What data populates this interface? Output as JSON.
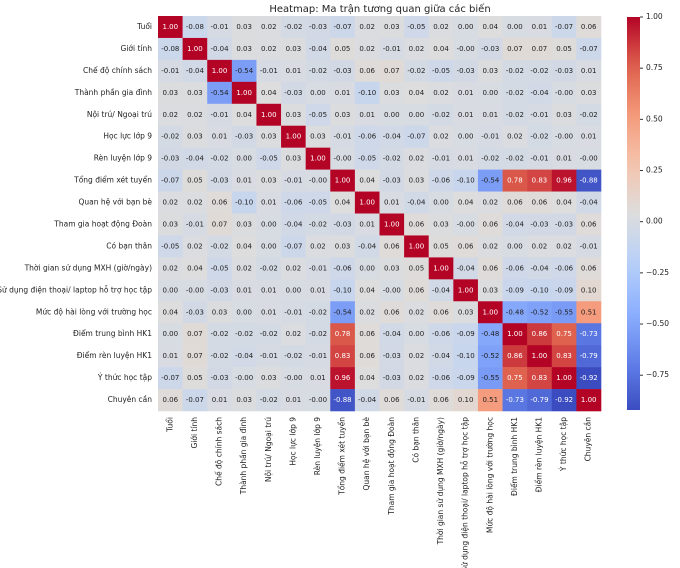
{
  "chart_data": {
    "type": "heatmap",
    "title": "Heatmap: Ma trận tương quan giữa các biến",
    "colormap": "coolwarm",
    "clim": [
      -0.92,
      1
    ],
    "cticks": [
      {
        "value": 1,
        "label": "1.00"
      },
      {
        "value": 0.75,
        "label": "0.75"
      },
      {
        "value": 0.5,
        "label": "0.50"
      },
      {
        "value": 0.25,
        "label": "0.25"
      },
      {
        "value": 0,
        "label": "0.00"
      },
      {
        "value": -0.25,
        "label": "−0.25"
      },
      {
        "value": -0.5,
        "label": "−0.50"
      },
      {
        "value": -0.75,
        "label": "−0.75"
      }
    ],
    "categories": [
      "Tuổi",
      "Giới tính",
      "Chế độ chính sách",
      "Thành phần gia đình",
      "Nội trú/ Ngoại trú",
      "Học lực lớp 9",
      "Rèn luyện lớp 9",
      "Tổng điểm xét tuyển",
      "Quan hệ với bạn bè",
      "Tham gia hoạt động Đoàn",
      "Có bạn thân",
      "Thời gian sử dụng MXH (giờ/ngày)",
      "Sử dụng điện thoại/ laptop hỗ trợ học tập",
      "Mức độ hài lòng với trường học",
      "Điểm trung bình HK1",
      "Điểm rèn luyện HK1",
      "Ý thức học tập",
      "Chuyên cần"
    ],
    "values": [
      [
        1,
        -0.08,
        -0.01,
        0.03,
        0.02,
        -0.02,
        -0.03,
        -0.07,
        0.02,
        0.03,
        -0.05,
        0.02,
        0,
        0.04,
        0,
        0.01,
        -0.07,
        0.06
      ],
      [
        -0.08,
        1,
        -0.04,
        0.03,
        0.02,
        0.03,
        -0.04,
        0.05,
        0.02,
        -0.01,
        0.02,
        0.04,
        -0.0,
        -0.03,
        0.07,
        0.07,
        0.05,
        -0.07
      ],
      [
        -0.01,
        -0.04,
        1,
        -0.54,
        -0.01,
        0.01,
        -0.02,
        -0.03,
        0.06,
        0.07,
        -0.02,
        -0.05,
        -0.03,
        0.03,
        -0.02,
        -0.02,
        -0.03,
        0.01
      ],
      [
        0.03,
        0.03,
        -0.54,
        1,
        0.04,
        -0.03,
        0,
        0.01,
        -0.1,
        0.03,
        0.04,
        0.02,
        0.01,
        0,
        -0.02,
        -0.04,
        -0.0,
        0.03
      ],
      [
        0.02,
        0.02,
        -0.01,
        0.04,
        1,
        0.03,
        -0.05,
        0.03,
        0.01,
        0,
        0,
        -0.02,
        0.01,
        0.01,
        -0.02,
        -0.01,
        0.03,
        -0.02
      ],
      [
        -0.02,
        0.03,
        0.01,
        -0.03,
        0.03,
        1,
        0.03,
        -0.01,
        -0.06,
        -0.04,
        -0.07,
        0.02,
        0,
        -0.01,
        0.02,
        -0.02,
        -0.0,
        0.01
      ],
      [
        -0.03,
        -0.04,
        -0.02,
        0,
        -0.05,
        0.03,
        1,
        -0.0,
        -0.05,
        -0.02,
        0.02,
        -0.01,
        0.01,
        -0.02,
        -0.02,
        -0.01,
        0.01,
        -0.0
      ],
      [
        -0.07,
        0.05,
        -0.03,
        0.01,
        0.03,
        -0.01,
        -0.0,
        1,
        0.04,
        -0.03,
        0.03,
        -0.06,
        -0.1,
        -0.54,
        0.78,
        0.83,
        0.96,
        -0.88
      ],
      [
        0.02,
        0.02,
        0.06,
        -0.1,
        0.01,
        -0.06,
        -0.05,
        0.04,
        1,
        0.01,
        -0.04,
        0,
        0.04,
        0.02,
        0.06,
        0.06,
        0.04,
        -0.04
      ],
      [
        0.03,
        -0.01,
        0.07,
        0.03,
        0,
        -0.04,
        -0.02,
        -0.03,
        0.01,
        1,
        0.06,
        0.03,
        -0.0,
        0.06,
        -0.04,
        -0.03,
        -0.03,
        0.06
      ],
      [
        -0.05,
        0.02,
        -0.02,
        0.04,
        0,
        -0.07,
        0.02,
        0.03,
        -0.04,
        0.06,
        1,
        0.05,
        0.06,
        0.02,
        0,
        0.02,
        0.02,
        -0.01
      ],
      [
        0.02,
        0.04,
        -0.05,
        0.02,
        -0.02,
        0.02,
        -0.01,
        -0.06,
        0,
        0.03,
        0.05,
        1,
        -0.04,
        0.06,
        -0.06,
        -0.04,
        -0.06,
        0.06
      ],
      [
        0,
        -0.0,
        -0.03,
        0.01,
        0.01,
        0,
        0.01,
        -0.1,
        0.04,
        -0.0,
        0.06,
        -0.04,
        1,
        0.03,
        -0.09,
        -0.1,
        -0.09,
        0.1
      ],
      [
        0.04,
        -0.03,
        0.03,
        0,
        0.01,
        -0.01,
        -0.02,
        -0.54,
        0.02,
        0.06,
        0.02,
        0.06,
        0.03,
        1,
        -0.48,
        -0.52,
        -0.55,
        0.51
      ],
      [
        0,
        0.07,
        -0.02,
        -0.02,
        -0.02,
        0.02,
        -0.02,
        0.78,
        0.06,
        -0.04,
        0,
        -0.06,
        -0.09,
        -0.48,
        1,
        0.86,
        0.75,
        -0.73
      ],
      [
        0.01,
        0.07,
        -0.02,
        -0.04,
        -0.01,
        -0.02,
        -0.01,
        0.83,
        0.06,
        -0.03,
        0.02,
        -0.04,
        -0.1,
        -0.52,
        0.86,
        1,
        0.83,
        -0.79
      ],
      [
        -0.07,
        0.05,
        -0.03,
        -0.0,
        0.03,
        -0.0,
        0.01,
        0.96,
        0.04,
        -0.03,
        0.02,
        -0.06,
        -0.09,
        -0.55,
        0.75,
        0.83,
        1,
        -0.92
      ],
      [
        0.06,
        -0.07,
        0.01,
        0.03,
        -0.02,
        0.01,
        -0.0,
        -0.88,
        -0.04,
        0.06,
        -0.01,
        0.06,
        0.1,
        0.51,
        -0.73,
        -0.79,
        -0.92,
        1
      ]
    ],
    "value_labels": [
      [
        "1.00",
        "-0.08",
        "-0.01",
        "0.03",
        "0.02",
        "-0.02",
        "-0.03",
        "-0.07",
        "0.02",
        "0.03",
        "-0.05",
        "0.02",
        "0.00",
        "0.04",
        "0.00",
        "0.01",
        "-0.07",
        "0.06"
      ],
      [
        "-0.08",
        "1.00",
        "-0.04",
        "0.03",
        "0.02",
        "0.03",
        "-0.04",
        "0.05",
        "0.02",
        "-0.01",
        "0.02",
        "0.04",
        "-0.00",
        "-0.03",
        "0.07",
        "0.07",
        "0.05",
        "-0.07"
      ],
      [
        "-0.01",
        "-0.04",
        "1.00",
        "-0.54",
        "-0.01",
        "0.01",
        "-0.02",
        "-0.03",
        "0.06",
        "0.07",
        "-0.02",
        "-0.05",
        "-0.03",
        "0.03",
        "-0.02",
        "-0.02",
        "-0.03",
        "0.01"
      ],
      [
        "0.03",
        "0.03",
        "-0.54",
        "1.00",
        "0.04",
        "-0.03",
        "0.00",
        "0.01",
        "-0.10",
        "0.03",
        "0.04",
        "0.02",
        "0.01",
        "0.00",
        "-0.02",
        "-0.04",
        "-0.00",
        "0.03"
      ],
      [
        "0.02",
        "0.02",
        "-0.01",
        "0.04",
        "1.00",
        "0.03",
        "-0.05",
        "0.03",
        "0.01",
        "0.00",
        "0.00",
        "-0.02",
        "0.01",
        "0.01",
        "-0.02",
        "-0.01",
        "0.03",
        "-0.02"
      ],
      [
        "-0.02",
        "0.03",
        "0.01",
        "-0.03",
        "0.03",
        "1.00",
        "0.03",
        "-0.01",
        "-0.06",
        "-0.04",
        "-0.07",
        "0.02",
        "0.00",
        "-0.01",
        "0.02",
        "-0.02",
        "-0.00",
        "0.01"
      ],
      [
        "-0.03",
        "-0.04",
        "-0.02",
        "0.00",
        "-0.05",
        "0.03",
        "1.00",
        "-0.00",
        "-0.05",
        "-0.02",
        "0.02",
        "-0.01",
        "0.01",
        "-0.02",
        "-0.02",
        "-0.01",
        "0.01",
        "-0.00"
      ],
      [
        "-0.07",
        "0.05",
        "-0.03",
        "0.01",
        "0.03",
        "-0.01",
        "-0.00",
        "1.00",
        "0.04",
        "-0.03",
        "0.03",
        "-0.06",
        "-0.10",
        "-0.54",
        "0.78",
        "0.83",
        "0.96",
        "-0.88"
      ],
      [
        "0.02",
        "0.02",
        "0.06",
        "-0.10",
        "0.01",
        "-0.06",
        "-0.05",
        "0.04",
        "1.00",
        "0.01",
        "-0.04",
        "0.00",
        "0.04",
        "0.02",
        "0.06",
        "0.06",
        "0.04",
        "-0.04"
      ],
      [
        "0.03",
        "-0.01",
        "0.07",
        "0.03",
        "0.00",
        "-0.04",
        "-0.02",
        "-0.03",
        "0.01",
        "1.00",
        "0.06",
        "0.03",
        "-0.00",
        "0.06",
        "-0.04",
        "-0.03",
        "-0.03",
        "0.06"
      ],
      [
        "-0.05",
        "0.02",
        "-0.02",
        "0.04",
        "0.00",
        "-0.07",
        "0.02",
        "0.03",
        "-0.04",
        "0.06",
        "1.00",
        "0.05",
        "0.06",
        "0.02",
        "0.00",
        "0.02",
        "0.02",
        "-0.01"
      ],
      [
        "0.02",
        "0.04",
        "-0.05",
        "0.02",
        "-0.02",
        "0.02",
        "-0.01",
        "-0.06",
        "0.00",
        "0.03",
        "0.05",
        "1.00",
        "-0.04",
        "0.06",
        "-0.06",
        "-0.04",
        "-0.06",
        "0.06"
      ],
      [
        "0.00",
        "-0.00",
        "-0.03",
        "0.01",
        "0.01",
        "0.00",
        "0.01",
        "-0.10",
        "0.04",
        "-0.00",
        "0.06",
        "-0.04",
        "1.00",
        "0.03",
        "-0.09",
        "-0.10",
        "-0.09",
        "0.10"
      ],
      [
        "0.04",
        "-0.03",
        "0.03",
        "0.00",
        "0.01",
        "-0.01",
        "-0.02",
        "-0.54",
        "0.02",
        "0.06",
        "0.02",
        "0.06",
        "0.03",
        "1.00",
        "-0.48",
        "-0.52",
        "-0.55",
        "0.51"
      ],
      [
        "0.00",
        "0.07",
        "-0.02",
        "-0.02",
        "-0.02",
        "0.02",
        "-0.02",
        "0.78",
        "0.06",
        "-0.04",
        "0.00",
        "-0.06",
        "-0.09",
        "-0.48",
        "1.00",
        "0.86",
        "0.75",
        "-0.73"
      ],
      [
        "0.01",
        "0.07",
        "-0.02",
        "-0.04",
        "-0.01",
        "-0.02",
        "-0.01",
        "0.83",
        "0.06",
        "-0.03",
        "0.02",
        "-0.04",
        "-0.10",
        "-0.52",
        "0.86",
        "1.00",
        "0.83",
        "-0.79"
      ],
      [
        "-0.07",
        "0.05",
        "-0.03",
        "-0.00",
        "0.03",
        "-0.00",
        "0.01",
        "0.96",
        "0.04",
        "-0.03",
        "0.02",
        "-0.06",
        "-0.09",
        "-0.55",
        "0.75",
        "0.83",
        "1.00",
        "-0.92"
      ],
      [
        "0.06",
        "-0.07",
        "0.01",
        "0.03",
        "-0.02",
        "0.01",
        "-0.00",
        "-0.88",
        "-0.04",
        "0.06",
        "-0.01",
        "0.06",
        "0.10",
        "0.51",
        "-0.73",
        "-0.79",
        "-0.92",
        "1.00"
      ]
    ]
  }
}
